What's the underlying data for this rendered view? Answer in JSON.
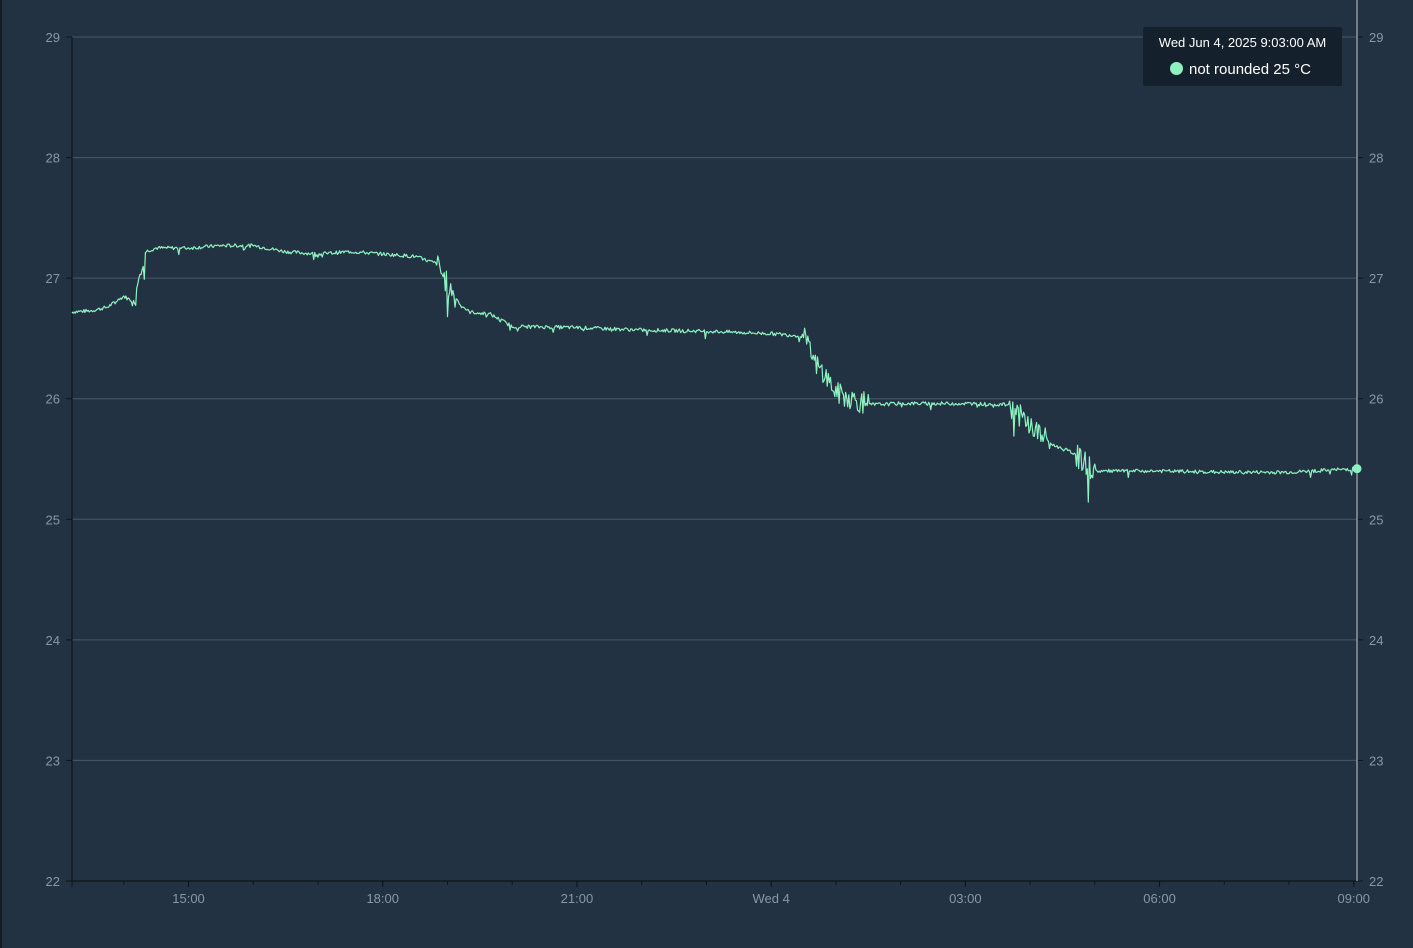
{
  "colors": {
    "background": "#233242",
    "series": "#8ef2c0",
    "grid": "#4a5866",
    "axis": "#0d141b",
    "tick_text": "#8a96a3",
    "cursor_line": "#a9b1b9"
  },
  "tooltip": {
    "time": "Wed Jun 4, 2025 9:03:00 AM",
    "series_name": "not rounded",
    "value_text": "25 °C"
  },
  "chart_data": {
    "type": "line",
    "x_start": "2025-06-03 13:12",
    "x_end": "2025-06-04 09:03",
    "x_tick_labels": [
      "15:00",
      "18:00",
      "21:00",
      "Wed 4",
      "03:00",
      "06:00",
      "09:00"
    ],
    "y_tick_labels": [
      "22",
      "23",
      "24",
      "25",
      "26",
      "27",
      "28",
      "29"
    ],
    "ylim": [
      22,
      29
    ],
    "grid": true,
    "right_axis": true,
    "series": [
      {
        "name": "not rounded",
        "points": [
          [
            "2025-06-03 13:12",
            26.72
          ],
          [
            "2025-06-03 13:30",
            26.73
          ],
          [
            "2025-06-03 13:45",
            26.76
          ],
          [
            "2025-06-03 14:00",
            26.85
          ],
          [
            "2025-06-03 14:10",
            26.8
          ],
          [
            "2025-06-03 14:15",
            27.1
          ],
          [
            "2025-06-03 14:20",
            27.22
          ],
          [
            "2025-06-03 14:30",
            27.25
          ],
          [
            "2025-06-03 15:00",
            27.25
          ],
          [
            "2025-06-03 15:30",
            27.27
          ],
          [
            "2025-06-03 16:00",
            27.27
          ],
          [
            "2025-06-03 16:30",
            27.22
          ],
          [
            "2025-06-03 17:00",
            27.2
          ],
          [
            "2025-06-03 17:30",
            27.22
          ],
          [
            "2025-06-03 18:00",
            27.2
          ],
          [
            "2025-06-03 18:30",
            27.18
          ],
          [
            "2025-06-03 18:50",
            27.12
          ],
          [
            "2025-06-03 19:00",
            26.95
          ],
          [
            "2025-06-03 19:10",
            26.8
          ],
          [
            "2025-06-03 19:20",
            26.72
          ],
          [
            "2025-06-03 19:40",
            26.7
          ],
          [
            "2025-06-03 20:00",
            26.6
          ],
          [
            "2025-06-03 21:00",
            26.59
          ],
          [
            "2025-06-03 22:00",
            26.57
          ],
          [
            "2025-06-03 23:00",
            26.56
          ],
          [
            "2025-06-04 00:00",
            26.54
          ],
          [
            "2025-06-04 00:30",
            26.52
          ],
          [
            "2025-06-04 00:40",
            26.3
          ],
          [
            "2025-06-04 00:50",
            26.2
          ],
          [
            "2025-06-04 01:00",
            26.05
          ],
          [
            "2025-06-04 01:30",
            25.95
          ],
          [
            "2025-06-04 02:00",
            25.96
          ],
          [
            "2025-06-04 03:00",
            25.96
          ],
          [
            "2025-06-04 03:40",
            25.95
          ],
          [
            "2025-06-04 04:00",
            25.78
          ],
          [
            "2025-06-04 04:20",
            25.62
          ],
          [
            "2025-06-04 04:40",
            25.55
          ],
          [
            "2025-06-04 05:00",
            25.4
          ],
          [
            "2025-06-04 06:00",
            25.4
          ],
          [
            "2025-06-04 07:00",
            25.39
          ],
          [
            "2025-06-04 08:00",
            25.39
          ],
          [
            "2025-06-04 09:03",
            25.42
          ]
        ]
      }
    ],
    "cursor": {
      "x": "2025-06-04 09:03",
      "y": 25.42
    }
  }
}
